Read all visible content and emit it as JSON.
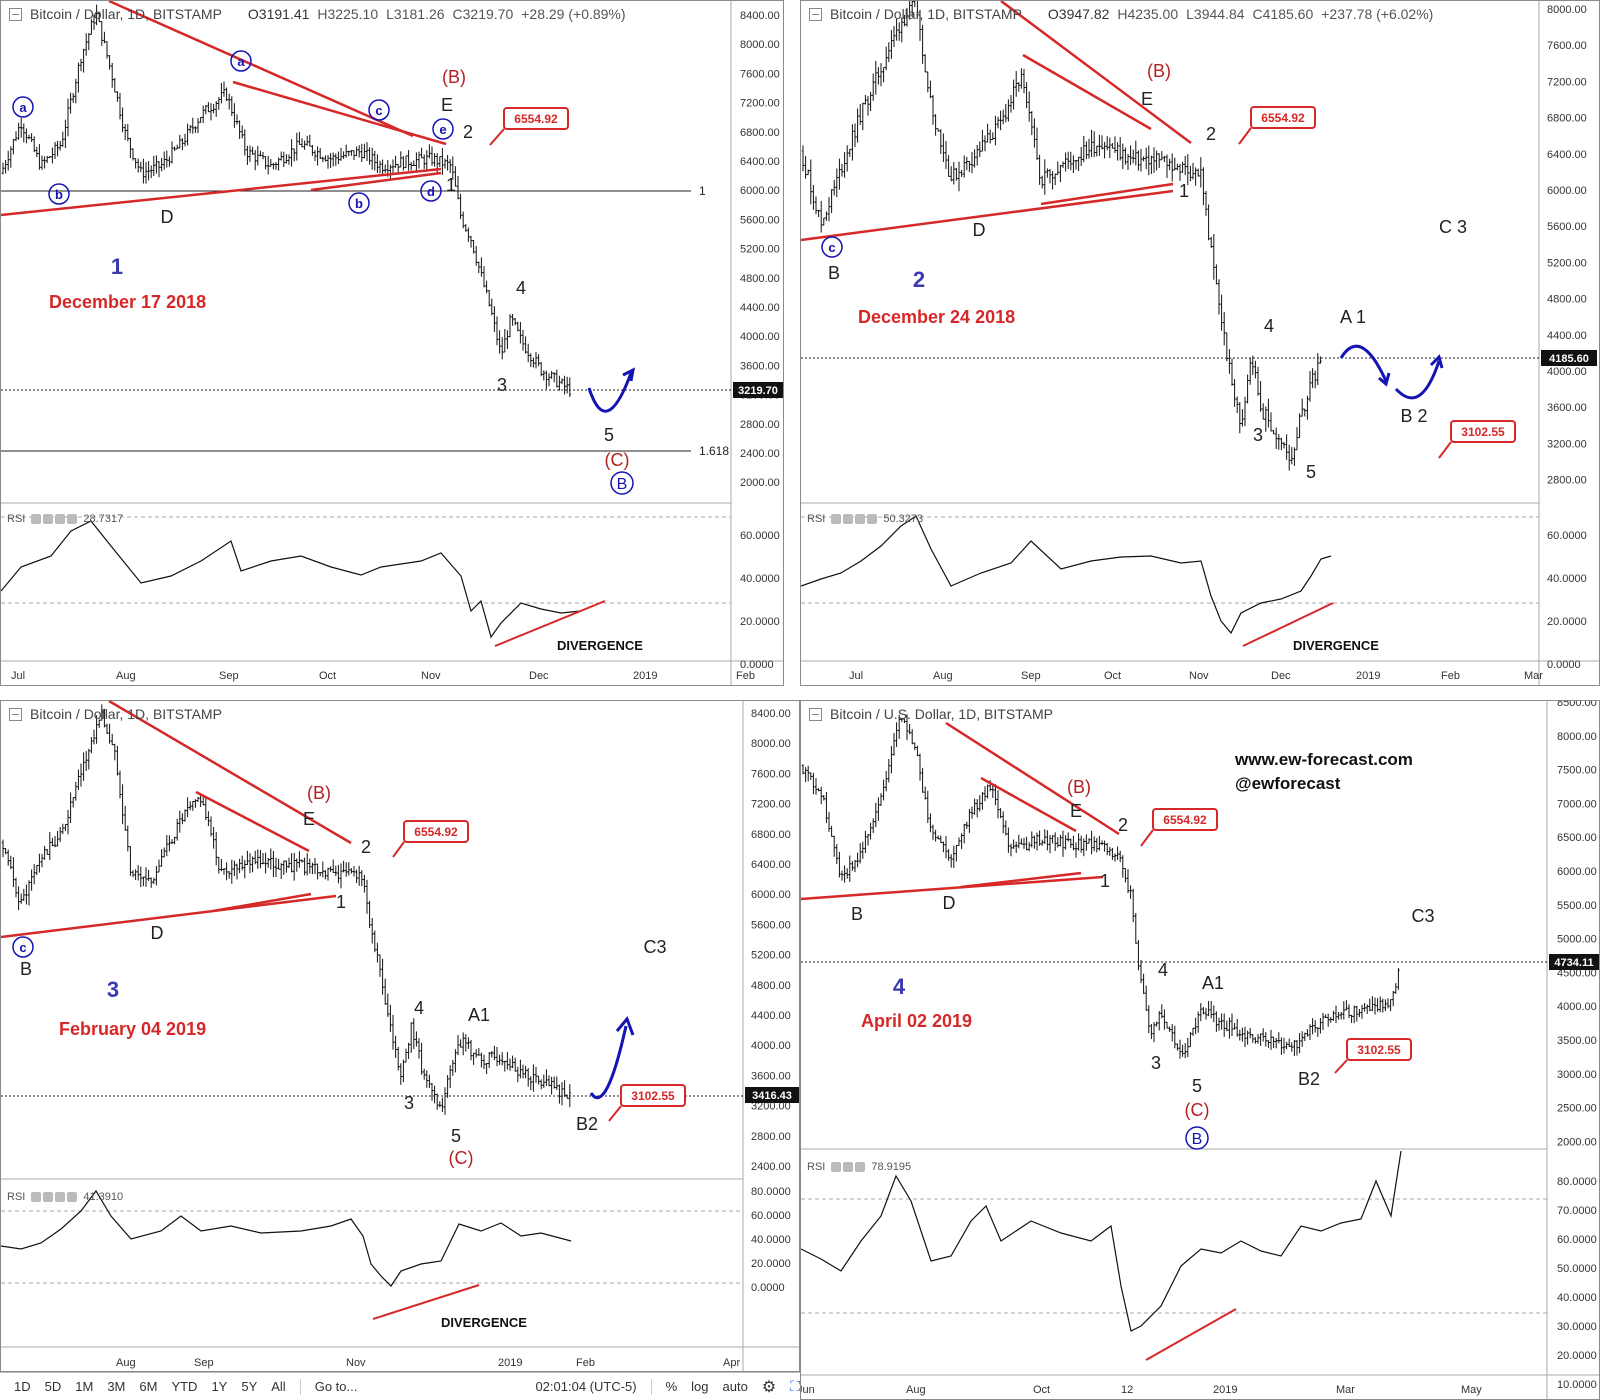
{
  "panels": [
    {
      "id": "p1",
      "number": "1",
      "date": "December 17 2018",
      "title": "Bitcoin / Dollar, 1D, BITSTAMP",
      "ohlc": {
        "o": "O3191.41",
        "h": "H3225.10",
        "l": "L3181.26",
        "c": "C3219.70",
        "chg": "+28.29 (+0.89%)"
      },
      "price_ticks": [
        "8400.00",
        "8000.00",
        "7600.00",
        "7200.00",
        "6800.00",
        "6400.00",
        "6000.00",
        "5600.00",
        "5200.00",
        "4800.00",
        "4400.00",
        "4000.00",
        "3600.00",
        "3200.00",
        "2800.00",
        "2400.00",
        "2000.00"
      ],
      "current_price": "3219.70",
      "level_labels": [
        "1",
        "1.618"
      ],
      "box_label": "6554.92",
      "wave_labels": [
        "a",
        "b",
        "D",
        "a",
        "c",
        "b",
        "e",
        "d",
        "(B)",
        "E",
        "2",
        "1",
        "4",
        "3",
        "5",
        "(C)",
        "B"
      ],
      "rsi": {
        "label": "RSI",
        "value": "28.7317",
        "ticks": [
          "60.0000",
          "40.0000",
          "20.0000",
          "0.0000"
        ],
        "note": "DIVERGENCE"
      },
      "time_ticks": [
        "Jul",
        "Aug",
        "Sep",
        "Oct",
        "Nov",
        "Dec",
        "2019",
        "Feb"
      ]
    },
    {
      "id": "p2",
      "number": "2",
      "date": "December 24 2018",
      "title": "Bitcoin / Dollar, 1D, BITSTAMP",
      "ohlc": {
        "o": "O3947.82",
        "h": "H4235.00",
        "l": "L3944.84",
        "c": "C4185.60",
        "chg": "+237.78 (+6.02%)"
      },
      "price_ticks": [
        "8000.00",
        "7600.00",
        "7200.00",
        "6800.00",
        "6400.00",
        "6000.00",
        "5600.00",
        "5200.00",
        "4800.00",
        "4400.00",
        "4000.00",
        "3600.00",
        "3200.00",
        "2800.00"
      ],
      "current_price": "4185.60",
      "box_label": "6554.92",
      "box_label_2": "3102.55",
      "wave_labels": [
        "c",
        "B",
        "D",
        "(B)",
        "E",
        "2",
        "1",
        "4",
        "3",
        "5",
        "A 1",
        "B 2",
        "C 3"
      ],
      "rsi": {
        "label": "RSI",
        "value": "50.3273",
        "ticks": [
          "60.0000",
          "40.0000",
          "20.0000",
          "0.0000"
        ],
        "note": "DIVERGENCE"
      },
      "time_ticks": [
        "Jul",
        "Aug",
        "Sep",
        "Oct",
        "Nov",
        "Dec",
        "2019",
        "Feb",
        "Mar"
      ]
    },
    {
      "id": "p3",
      "number": "3",
      "date": "February 04 2019",
      "title": "Bitcoin / Dollar, 1D, BITSTAMP",
      "ohlc": null,
      "price_ticks": [
        "8400.00",
        "8000.00",
        "7600.00",
        "7200.00",
        "6800.00",
        "6400.00",
        "6000.00",
        "5600.00",
        "5200.00",
        "4800.00",
        "4400.00",
        "4000.00",
        "3600.00",
        "3200.00",
        "2800.00",
        "2400.00"
      ],
      "current_price": "3416.43",
      "box_label": "6554.92",
      "box_label_2": "3102.55",
      "wave_labels": [
        "c",
        "B",
        "D",
        "(B)",
        "E",
        "2",
        "1",
        "4",
        "3",
        "5",
        "(C)",
        "A1",
        "B2",
        "C3"
      ],
      "rsi": {
        "label": "RSI",
        "value": "41.3910",
        "ticks": [
          "80.0000",
          "60.0000",
          "40.0000",
          "20.0000",
          "0.0000"
        ],
        "note": "DIVERGENCE"
      },
      "time_ticks": [
        "Aug",
        "Sep",
        "Nov",
        "2019",
        "Feb",
        "Apr"
      ]
    },
    {
      "id": "p4",
      "number": "4",
      "date": "April 02 2019",
      "title": "Bitcoin / U.S. Dollar, 1D, BITSTAMP",
      "ohlc": null,
      "price_ticks": [
        "8500.00",
        "8000.00",
        "7500.00",
        "7000.00",
        "6500.00",
        "6000.00",
        "5500.00",
        "5000.00",
        "4500.00",
        "4000.00",
        "3500.00",
        "3000.00",
        "2500.00",
        "2000.00"
      ],
      "current_price": "4734.11",
      "box_label": "6554.92",
      "box_label_2": "3102.55",
      "wave_labels": [
        "B",
        "D",
        "(B)",
        "E",
        "2",
        "1",
        "4",
        "3",
        "5",
        "(C)",
        "B",
        "A1",
        "B2",
        "C3"
      ],
      "rsi": {
        "label": "RSI",
        "value": "78.9195",
        "ticks": [
          "80.0000",
          "70.0000",
          "60.0000",
          "50.0000",
          "40.0000",
          "30.0000",
          "20.0000",
          "10.0000"
        ],
        "note": ""
      },
      "time_ticks": [
        "Jun",
        "Aug",
        "Oct",
        "12",
        "2019",
        "Mar",
        "May"
      ]
    }
  ],
  "site": {
    "url": "www.ew-forecast.com",
    "handle": "@ewforecast"
  },
  "bottom_bar": {
    "ranges": [
      "1D",
      "5D",
      "1M",
      "3M",
      "6M",
      "YTD",
      "1Y",
      "5Y",
      "All"
    ],
    "goto": "Go to...",
    "time": "02:01:04 (UTC-5)",
    "pct": "%",
    "log": "log",
    "auto": "auto"
  },
  "colors": {
    "annotation_red": "#d62828",
    "wave_blue": "#1414b4",
    "candle": "#111111"
  },
  "chart_data": [
    {
      "type": "candlestick",
      "title": "Bitcoin / Dollar, 1D, BITSTAMP",
      "note": "December 17 2018",
      "ylim": [
        2000,
        8400
      ],
      "key_levels": {
        "box": 6554.92,
        "last": 3219.7
      },
      "path": [
        [
          0,
          6200
        ],
        [
          20,
          6900
        ],
        [
          40,
          6300
        ],
        [
          60,
          6600
        ],
        [
          80,
          7800
        ],
        [
          95,
          8400
        ],
        [
          110,
          7600
        ],
        [
          125,
          6700
        ],
        [
          140,
          6200
        ],
        [
          160,
          6300
        ],
        [
          180,
          6600
        ],
        [
          200,
          7000
        ],
        [
          225,
          7300
        ],
        [
          245,
          6500
        ],
        [
          270,
          6300
        ],
        [
          300,
          6600
        ],
        [
          330,
          6400
        ],
        [
          360,
          6500
        ],
        [
          380,
          6300
        ],
        [
          400,
          6350
        ],
        [
          430,
          6400
        ],
        [
          450,
          6300
        ],
        [
          460,
          5600
        ],
        [
          470,
          5300
        ],
        [
          480,
          4800
        ],
        [
          490,
          4300
        ],
        [
          500,
          3700
        ],
        [
          510,
          4200
        ],
        [
          520,
          3900
        ],
        [
          540,
          3500
        ],
        [
          560,
          3300
        ],
        [
          570,
          3220
        ]
      ]
    },
    {
      "type": "candlestick",
      "title": "Bitcoin / Dollar, 1D, BITSTAMP",
      "note": "December 24 2018",
      "ylim": [
        2800,
        8000
      ],
      "key_levels": {
        "box": 6554.92,
        "box2": 3102.55,
        "last": 4185.6
      },
      "path": [
        [
          0,
          6500
        ],
        [
          20,
          5700
        ],
        [
          40,
          6300
        ],
        [
          60,
          6900
        ],
        [
          80,
          7400
        ],
        [
          100,
          7900
        ],
        [
          115,
          8100
        ],
        [
          130,
          7000
        ],
        [
          150,
          6200
        ],
        [
          170,
          6400
        ],
        [
          200,
          6800
        ],
        [
          220,
          7300
        ],
        [
          240,
          6200
        ],
        [
          270,
          6400
        ],
        [
          300,
          6600
        ],
        [
          330,
          6400
        ],
        [
          360,
          6400
        ],
        [
          380,
          6300
        ],
        [
          400,
          6250
        ],
        [
          410,
          5400
        ],
        [
          420,
          4700
        ],
        [
          430,
          4000
        ],
        [
          440,
          3500
        ],
        [
          450,
          4300
        ],
        [
          460,
          3700
        ],
        [
          480,
          3300
        ],
        [
          490,
          3150
        ],
        [
          500,
          3600
        ],
        [
          510,
          4000
        ],
        [
          520,
          4185
        ]
      ]
    },
    {
      "type": "candlestick",
      "title": "Bitcoin / Dollar, 1D, BITSTAMP",
      "note": "February 04 2019",
      "ylim": [
        2400,
        8400
      ],
      "key_levels": {
        "box": 6554.92,
        "box2": 3102.55,
        "last": 3416.43
      },
      "path": [
        [
          0,
          6700
        ],
        [
          20,
          5900
        ],
        [
          40,
          6500
        ],
        [
          60,
          6800
        ],
        [
          80,
          7600
        ],
        [
          100,
          8400
        ],
        [
          115,
          7800
        ],
        [
          130,
          6300
        ],
        [
          150,
          6200
        ],
        [
          180,
          7000
        ],
        [
          200,
          7300
        ],
        [
          220,
          6300
        ],
        [
          250,
          6500
        ],
        [
          280,
          6400
        ],
        [
          300,
          6400
        ],
        [
          330,
          6300
        ],
        [
          360,
          6300
        ],
        [
          370,
          5600
        ],
        [
          380,
          4900
        ],
        [
          390,
          4200
        ],
        [
          400,
          3600
        ],
        [
          410,
          4300
        ],
        [
          420,
          3800
        ],
        [
          430,
          3400
        ],
        [
          440,
          3200
        ],
        [
          450,
          3700
        ],
        [
          460,
          4100
        ],
        [
          480,
          3850
        ],
        [
          500,
          3900
        ],
        [
          520,
          3700
        ],
        [
          540,
          3550
        ],
        [
          560,
          3450
        ],
        [
          570,
          3416
        ]
      ]
    },
    {
      "type": "candlestick",
      "title": "Bitcoin / U.S. Dollar, 1D, BITSTAMP",
      "note": "April 02 2019",
      "ylim": [
        2000,
        8500
      ],
      "key_levels": {
        "box": 6554.92,
        "box2": 3102.55,
        "last": 4734.11
      },
      "path": [
        [
          0,
          7700
        ],
        [
          20,
          7300
        ],
        [
          40,
          6000
        ],
        [
          60,
          6400
        ],
        [
          80,
          7200
        ],
        [
          100,
          8500
        ],
        [
          115,
          7900
        ],
        [
          130,
          6700
        ],
        [
          150,
          6300
        ],
        [
          170,
          7000
        ],
        [
          190,
          7400
        ],
        [
          210,
          6400
        ],
        [
          240,
          6600
        ],
        [
          270,
          6500
        ],
        [
          300,
          6500
        ],
        [
          320,
          6300
        ],
        [
          330,
          5700
        ],
        [
          340,
          4400
        ],
        [
          350,
          3600
        ],
        [
          360,
          4000
        ],
        [
          380,
          3300
        ],
        [
          390,
          3600
        ],
        [
          400,
          4000
        ],
        [
          420,
          3800
        ],
        [
          450,
          3600
        ],
        [
          470,
          3500
        ],
        [
          490,
          3400
        ],
        [
          510,
          3700
        ],
        [
          530,
          3900
        ],
        [
          560,
          4000
        ],
        [
          590,
          4100
        ],
        [
          600,
          4734
        ]
      ]
    }
  ]
}
